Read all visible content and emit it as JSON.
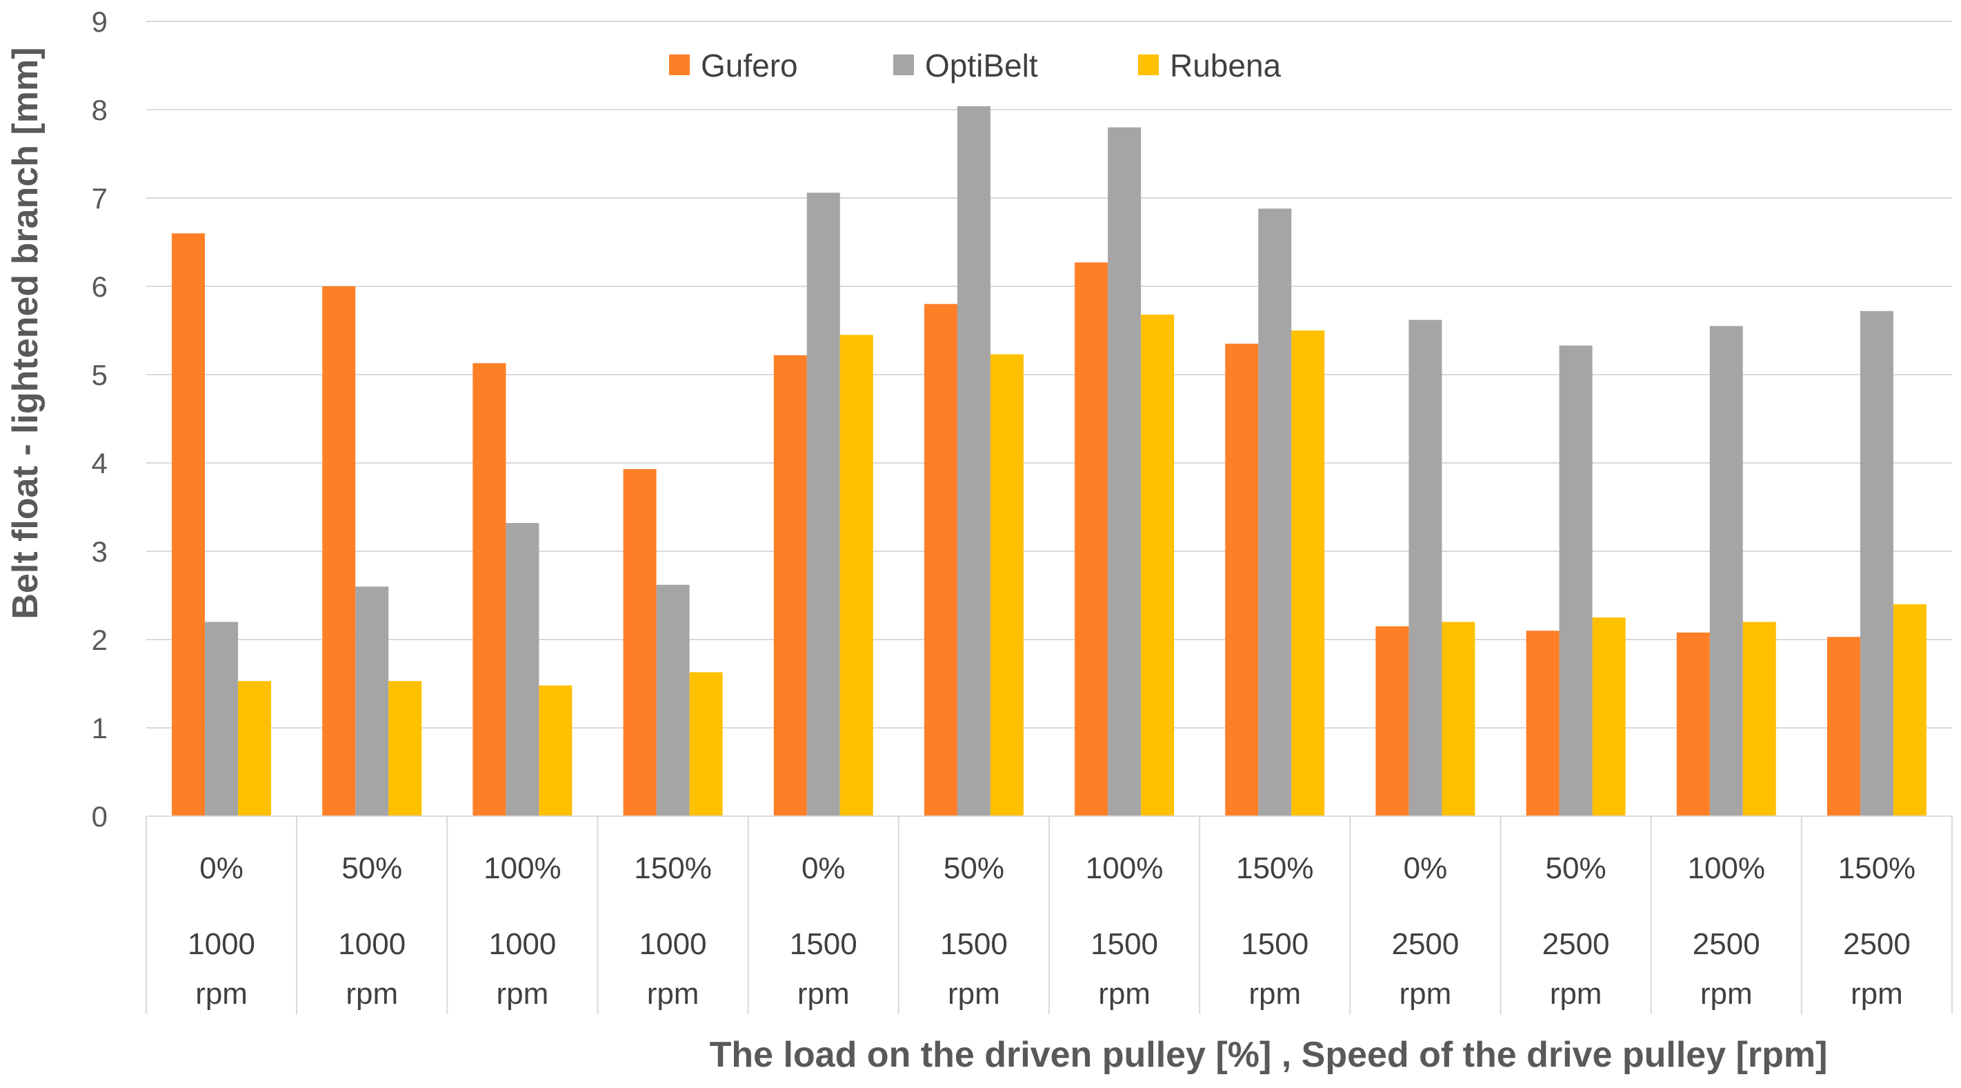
{
  "chart_data": {
    "type": "bar",
    "title": "",
    "ylabel": "Belt float - lightened branch [mm]",
    "xlabel": "The load on the driven pulley [%] , Speed of the drive pulley [rpm]",
    "ylim": [
      0,
      9
    ],
    "yticks": [
      0,
      1,
      2,
      3,
      4,
      5,
      6,
      7,
      8,
      9
    ],
    "grid": true,
    "legend_position": "top-center",
    "categories": [
      {
        "load": "0%",
        "speed": "1000",
        "unit": "rpm"
      },
      {
        "load": "50%",
        "speed": "1000",
        "unit": "rpm"
      },
      {
        "load": "100%",
        "speed": "1000",
        "unit": "rpm"
      },
      {
        "load": "150%",
        "speed": "1000",
        "unit": "rpm"
      },
      {
        "load": "0%",
        "speed": "1500",
        "unit": "rpm"
      },
      {
        "load": "50%",
        "speed": "1500",
        "unit": "rpm"
      },
      {
        "load": "100%",
        "speed": "1500",
        "unit": "rpm"
      },
      {
        "load": "150%",
        "speed": "1500",
        "unit": "rpm"
      },
      {
        "load": "0%",
        "speed": "2500",
        "unit": "rpm"
      },
      {
        "load": "50%",
        "speed": "2500",
        "unit": "rpm"
      },
      {
        "load": "100%",
        "speed": "2500",
        "unit": "rpm"
      },
      {
        "load": "150%",
        "speed": "2500",
        "unit": "rpm"
      }
    ],
    "series": [
      {
        "name": "Gufero",
        "color": "#FF7F27",
        "values": [
          6.6,
          6.0,
          5.13,
          3.93,
          5.22,
          5.8,
          6.27,
          5.35,
          2.15,
          2.1,
          2.08,
          2.03
        ]
      },
      {
        "name": "OptiBelt",
        "color": "#A5A5A5",
        "values": [
          2.2,
          2.6,
          3.32,
          2.62,
          7.06,
          8.04,
          7.8,
          6.88,
          5.62,
          5.33,
          5.55,
          5.72
        ]
      },
      {
        "name": "Rubena",
        "color": "#FFC000",
        "values": [
          1.53,
          1.53,
          1.48,
          1.63,
          5.45,
          5.23,
          5.68,
          5.5,
          2.2,
          2.25,
          2.2,
          2.4
        ]
      }
    ]
  }
}
